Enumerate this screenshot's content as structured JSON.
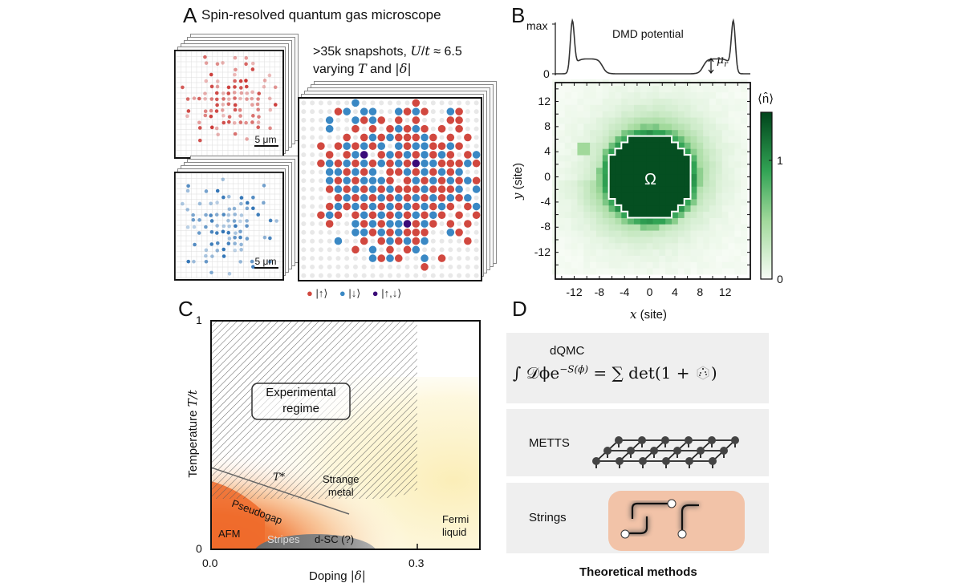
{
  "panelA": {
    "label": "A",
    "title": "Spin-resolved quantum gas microscope",
    "annotation": {
      "prefix": ">35k snapshots, ",
      "U": "U",
      "slash": "/",
      "t": "t",
      "approx": " ≈ 6.5",
      "line2_prefix": "varying ",
      "T": "T",
      "and": " and ",
      "delta": "|δ|"
    },
    "scale_bar_label": "5 μm",
    "legend": [
      {
        "label": "|↑⟩",
        "color": "#d1483f"
      },
      {
        "label": "|↓⟩",
        "color": "#3a88c4"
      },
      {
        "label": "|↑,↓⟩",
        "color": "#3b0a78"
      }
    ]
  },
  "panelB": {
    "label": "B",
    "potential": {
      "title": "DMD potential",
      "y_ticks": [
        "max",
        "0"
      ],
      "mu": "μ",
      "mu_sub": "r"
    },
    "heatmap": {
      "region_label": "Ω",
      "x_ticks": [
        "-12",
        "-8",
        "-4",
        "0",
        "4",
        "8",
        "12"
      ],
      "y_ticks": [
        "12",
        "8",
        "4",
        "0",
        "-4",
        "-8",
        "-12"
      ],
      "xlabel_var": "x",
      "xlabel_unit": " (site)",
      "ylabel_var": "y",
      "ylabel_unit": " (site)",
      "colorbar_label": "⟨n̂⟩",
      "colorbar_ticks": [
        "1",
        "0"
      ],
      "colormap": [
        "#f7fcf5",
        "#a1d99b",
        "#31a354",
        "#00441b"
      ]
    }
  },
  "panelC": {
    "label": "C",
    "xlabel_prefix": "Doping ",
    "xlabel_var": "|δ|",
    "ylabel_prefix": "Temperature ",
    "ylabel_var": "T/t",
    "x_ticks": [
      "0.0",
      "0.3"
    ],
    "y_ticks": [
      "1",
      "0"
    ],
    "regions": {
      "experimental_line1": "Experimental",
      "experimental_line2": "regime",
      "tstar": "T*",
      "strange_line1": "Strange",
      "strange_line2": "metal",
      "pseudogap": "Pseudogap",
      "afm": "AFM",
      "stripes": "Stripes",
      "dsc": "d-SC (?)",
      "fermi_line1": "Fermi",
      "fermi_line2": "liquid"
    },
    "colors": {
      "afm": "#ef6a2a",
      "fermi": "#fbf3c4",
      "stripes": "#6e6e6e"
    }
  },
  "panelD": {
    "label": "D",
    "methods": [
      {
        "name": "dQMC",
        "formula_lhs": "∫ 𝒟ϕe",
        "formula_exp": "−S(ϕ)",
        "formula_rhs": " = ∑ det(1 + ",
        "formula_close": ")",
        "icon": "dice-icon"
      },
      {
        "name": "METTS",
        "icon": "lattice-icon"
      },
      {
        "name": "Strings",
        "icon": "strings-icon"
      }
    ],
    "caption": "Theoretical methods"
  }
}
